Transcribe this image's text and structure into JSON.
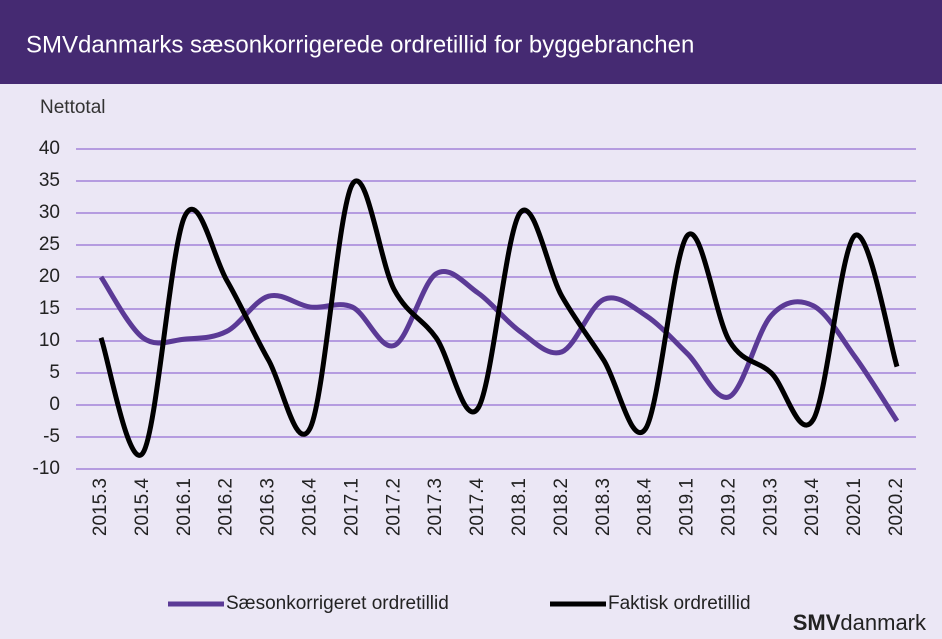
{
  "chart_data": {
    "type": "line",
    "title": "SMVdanmarks sæsonkorrigerede ordretillid for byggebranchen",
    "y_axis_label": "Nettotal",
    "categories": [
      "2015.3",
      "2015.4",
      "2016.1",
      "2016.2",
      "2016.3",
      "2016.4",
      "2017.1",
      "2017.2",
      "2017.3",
      "2017.4",
      "2018.1",
      "2018.2",
      "2018.3",
      "2018.4",
      "2019.1",
      "2019.2",
      "2019.3",
      "2019.4",
      "2020.1",
      "2020.2"
    ],
    "series": [
      {
        "name": "Sæsonkorrigeret ordretillid",
        "color": "#5b3a96",
        "values": [
          20,
          10.5,
          10.3,
          11.5,
          17,
          15.3,
          15.3,
          9.3,
          20.5,
          17.5,
          11.5,
          8.3,
          16.5,
          14,
          8,
          1.3,
          14,
          15.5,
          7.5,
          -2.5
        ]
      },
      {
        "name": "Faktisk ordretillid",
        "color": "#000000",
        "values": [
          10.5,
          -7.5,
          29.5,
          19.5,
          7,
          -3.5,
          34.5,
          18,
          10.5,
          -0.5,
          30,
          17,
          7,
          -3.7,
          26.5,
          10,
          5,
          -2.3,
          26.5,
          6
        ]
      }
    ],
    "ylim": [
      -10,
      40
    ],
    "yticks": [
      -10,
      -5,
      0,
      5,
      10,
      15,
      20,
      25,
      30,
      35,
      40
    ],
    "grid": true,
    "legend": "bottom",
    "logo": {
      "bold": "SMV",
      "rest": "danmark"
    }
  }
}
